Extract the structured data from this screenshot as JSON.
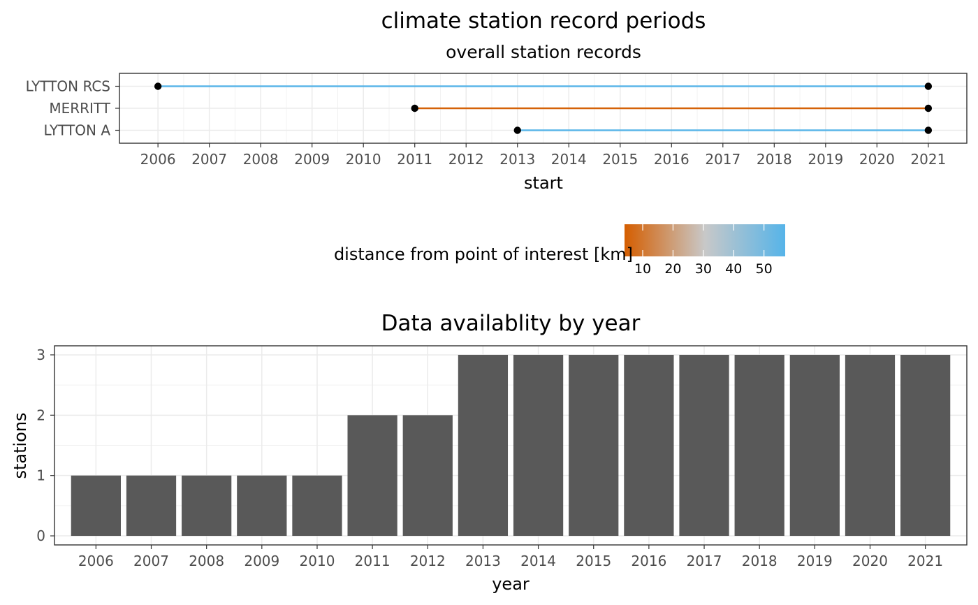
{
  "page_title": "climate station record periods",
  "chart_data": [
    {
      "type": "line",
      "subtitle": "overall station records",
      "xlabel": "start",
      "ylabel": "",
      "xlim": [
        2005.25,
        2021.75
      ],
      "x_ticks": [
        "2006",
        "2007",
        "2008",
        "2009",
        "2010",
        "2011",
        "2012",
        "2013",
        "2014",
        "2015",
        "2016",
        "2017",
        "2018",
        "2019",
        "2020",
        "2021"
      ],
      "grid": true,
      "stations": [
        {
          "name": "LYTTON RCS",
          "start": 2006,
          "end": 2021,
          "distance_km": 56
        },
        {
          "name": "MERRITT",
          "start": 2011,
          "end": 2021,
          "distance_km": 5
        },
        {
          "name": "LYTTON A",
          "start": 2013,
          "end": 2021,
          "distance_km": 56
        }
      ],
      "legend": {
        "title": "distance from point of interest [km]",
        "position": "bottom",
        "range": [
          4,
          57
        ],
        "breaks": [
          10,
          20,
          30,
          40,
          50
        ],
        "break_labels": [
          "10",
          "20",
          "30",
          "40",
          "50"
        ],
        "color_low": "#d55e00",
        "color_mid": "#c8c8c8",
        "color_high": "#56b4e9"
      }
    },
    {
      "type": "bar",
      "title": "Data availablity by year",
      "xlabel": "year",
      "ylabel": "stations",
      "categories": [
        "2006",
        "2007",
        "2008",
        "2009",
        "2010",
        "2011",
        "2012",
        "2013",
        "2014",
        "2015",
        "2016",
        "2017",
        "2018",
        "2019",
        "2020",
        "2021"
      ],
      "values": [
        1,
        1,
        1,
        1,
        1,
        2,
        2,
        3,
        3,
        3,
        3,
        3,
        3,
        3,
        3,
        3
      ],
      "ylim": [
        -0.15,
        3.15
      ],
      "y_ticks": [
        0,
        1,
        2,
        3
      ],
      "bar_color": "#595959",
      "grid": true
    }
  ]
}
